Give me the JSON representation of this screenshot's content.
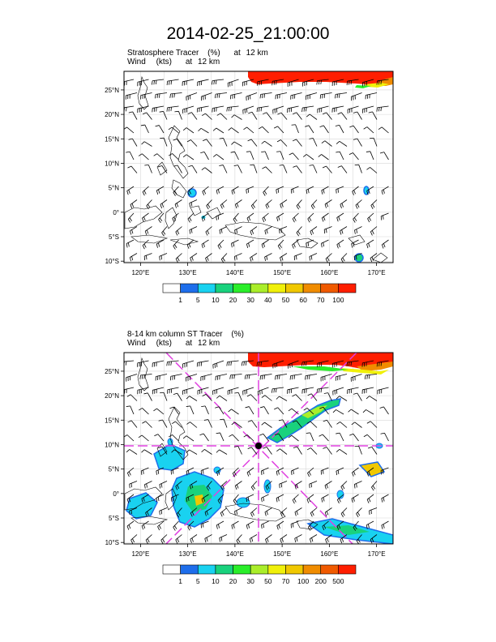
{
  "title": "2014-02-25_21:00:00",
  "panels": [
    {
      "label_line1": {
        "field": "Stratosphere Tracer",
        "unit": "(%)",
        "at": "at",
        "level": "12 km"
      },
      "label_line2": {
        "field": "Wind",
        "unit": "(kts)",
        "at": "at",
        "level": "12 km"
      },
      "lat_labels": [
        "25°N",
        "20°N",
        "15°N",
        "10°N",
        "5°N",
        "0°",
        "5°S",
        "10°S"
      ],
      "lon_labels": [
        "120°E",
        "130°E",
        "140°E",
        "150°E",
        "160°E",
        "170°E"
      ],
      "colorbar_labels": [
        "1",
        "5",
        "10",
        "20",
        "30",
        "40",
        "50",
        "60",
        "70",
        "100"
      ],
      "colorbar_colors": [
        "#ffffff",
        "#1e6eeb",
        "#19d2f0",
        "#19d27d",
        "#2aee2a",
        "#aaee2a",
        "#f0f00a",
        "#f0c800",
        "#f08c00",
        "#f05a00",
        "#ff1e00"
      ]
    },
    {
      "label_line1": {
        "field": "8-14 km column ST Tracer",
        "unit": "(%)"
      },
      "label_line2": {
        "field": "Wind",
        "unit": "(kts)",
        "at": "at",
        "level": "12 km"
      },
      "lat_labels": [
        "25°N",
        "20°N",
        "15°N",
        "10°N",
        "5°N",
        "0°",
        "5°S",
        "10°S"
      ],
      "lon_labels": [
        "120°E",
        "130°E",
        "140°E",
        "150°E",
        "160°E",
        "170°E"
      ],
      "colorbar_labels": [
        "1",
        "5",
        "10",
        "20",
        "30",
        "50",
        "70",
        "100",
        "200",
        "500"
      ],
      "colorbar_colors": [
        "#ffffff",
        "#1e6eeb",
        "#19d2f0",
        "#19d27d",
        "#2aee2a",
        "#aaee2a",
        "#f0f00a",
        "#f0c800",
        "#f08c00",
        "#f05a00",
        "#ff1e00"
      ],
      "storm_marker": {
        "lon": 145,
        "lat": 10
      }
    }
  ]
}
